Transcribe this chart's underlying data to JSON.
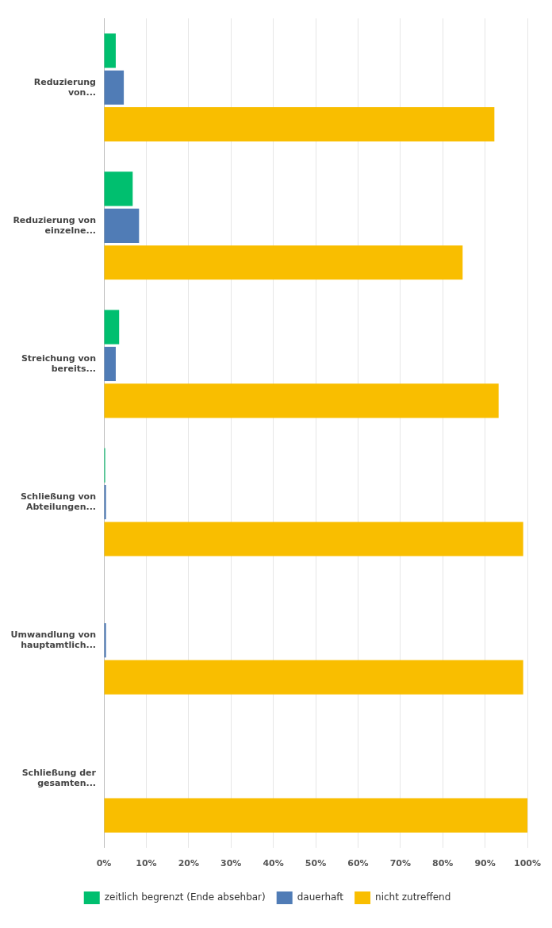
{
  "chart_data": {
    "type": "bar",
    "orientation": "horizontal",
    "categories": [
      "Reduzierung von...",
      "Reduzierung von einzelne...",
      "Streichung von bereits...",
      "Schließung von Abteilungen...",
      "Umwandlung von hauptamtlich...",
      "Schließung der gesamten..."
    ],
    "series": [
      {
        "name": "zeitlich begrenzt (Ende absehbar)",
        "color": "#00bf6f",
        "values": [
          2.8,
          6.8,
          3.6,
          0.3,
          0,
          0
        ]
      },
      {
        "name": "dauerhaft",
        "color": "#507cb6",
        "values": [
          4.7,
          8.3,
          2.8,
          0.5,
          0.5,
          0
        ]
      },
      {
        "name": "nicht zutreffend",
        "color": "#f9be00",
        "values": [
          92.2,
          84.7,
          93.2,
          99,
          99,
          100
        ]
      }
    ],
    "xlim": [
      0,
      100
    ],
    "xticks": [
      {
        "value": 0,
        "label": "0%"
      },
      {
        "value": 10,
        "label": "10%"
      },
      {
        "value": 20,
        "label": "20%"
      },
      {
        "value": 30,
        "label": "30%"
      },
      {
        "value": 40,
        "label": "40%"
      },
      {
        "value": 50,
        "label": "50%"
      },
      {
        "value": 60,
        "label": "60%"
      },
      {
        "value": 70,
        "label": "70%"
      },
      {
        "value": 80,
        "label": "80%"
      },
      {
        "value": 90,
        "label": "90%"
      },
      {
        "value": 100,
        "label": "100%"
      }
    ],
    "grid": "x",
    "legend": "bottom"
  }
}
